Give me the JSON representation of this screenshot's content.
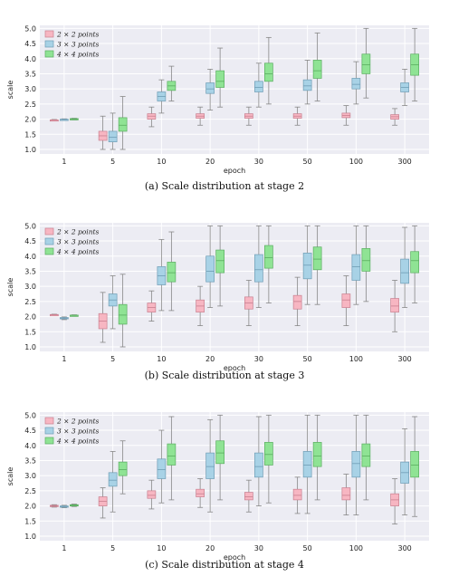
{
  "chart_data": [
    {
      "type": "box",
      "caption": "(a) Scale distribution at stage 2",
      "xlabel": "epoch",
      "ylabel": "scale",
      "ylim": [
        0.85,
        5.1
      ],
      "yticks": [
        "1.0",
        "1.5",
        "2.0",
        "2.5",
        "3.0",
        "3.5",
        "4.0",
        "4.5",
        "5.0"
      ],
      "grid": true,
      "legend_position": "top-left",
      "categories": [
        "1",
        "5",
        "10",
        "20",
        "30",
        "50",
        "100",
        "300"
      ],
      "series": [
        {
          "name": "2 × 2 points",
          "color": "#f7b6c2",
          "edge": "#c98090",
          "boxes": [
            {
              "whislo": 1.95,
              "q1": 1.96,
              "med": 1.97,
              "q3": 1.98,
              "whishi": 1.99
            },
            {
              "whislo": 1.0,
              "q1": 1.3,
              "med": 1.45,
              "q3": 1.6,
              "whishi": 2.1
            },
            {
              "whislo": 1.75,
              "q1": 2.0,
              "med": 2.1,
              "q3": 2.18,
              "whishi": 2.4
            },
            {
              "whislo": 1.8,
              "q1": 2.03,
              "med": 2.1,
              "q3": 2.18,
              "whishi": 2.4
            },
            {
              "whislo": 1.8,
              "q1": 2.03,
              "med": 2.1,
              "q3": 2.18,
              "whishi": 2.4
            },
            {
              "whislo": 1.8,
              "q1": 2.03,
              "med": 2.1,
              "q3": 2.18,
              "whishi": 2.4
            },
            {
              "whislo": 1.8,
              "q1": 2.05,
              "med": 2.12,
              "q3": 2.2,
              "whishi": 2.45
            },
            {
              "whislo": 1.8,
              "q1": 2.0,
              "med": 2.08,
              "q3": 2.15,
              "whishi": 2.35
            }
          ]
        },
        {
          "name": "3 × 3 points",
          "color": "#a8d2e6",
          "edge": "#6f9db5",
          "boxes": [
            {
              "whislo": 1.97,
              "q1": 1.98,
              "med": 1.99,
              "q3": 2.0,
              "whishi": 2.01
            },
            {
              "whislo": 1.0,
              "q1": 1.25,
              "med": 1.4,
              "q3": 1.6,
              "whishi": 2.2
            },
            {
              "whislo": 2.2,
              "q1": 2.6,
              "med": 2.75,
              "q3": 2.9,
              "whishi": 3.3
            },
            {
              "whislo": 2.3,
              "q1": 2.85,
              "med": 3.0,
              "q3": 3.2,
              "whishi": 3.65
            },
            {
              "whislo": 2.4,
              "q1": 2.9,
              "med": 3.05,
              "q3": 3.25,
              "whishi": 3.85
            },
            {
              "whislo": 2.5,
              "q1": 2.95,
              "med": 3.1,
              "q3": 3.3,
              "whishi": 3.95
            },
            {
              "whislo": 2.5,
              "q1": 3.0,
              "med": 3.15,
              "q3": 3.35,
              "whishi": 3.9
            },
            {
              "whislo": 2.45,
              "q1": 2.9,
              "med": 3.05,
              "q3": 3.2,
              "whishi": 3.65
            }
          ]
        },
        {
          "name": "4 × 4 points",
          "color": "#8fe394",
          "edge": "#5aae60",
          "boxes": [
            {
              "whislo": 1.98,
              "q1": 1.99,
              "med": 2.0,
              "q3": 2.02,
              "whishi": 2.03
            },
            {
              "whislo": 1.0,
              "q1": 1.6,
              "med": 1.8,
              "q3": 2.05,
              "whishi": 2.75
            },
            {
              "whislo": 2.6,
              "q1": 2.95,
              "med": 3.1,
              "q3": 3.25,
              "whishi": 3.75
            },
            {
              "whislo": 2.4,
              "q1": 3.05,
              "med": 3.25,
              "q3": 3.6,
              "whishi": 4.35
            },
            {
              "whislo": 2.5,
              "q1": 3.25,
              "med": 3.5,
              "q3": 3.85,
              "whishi": 4.7
            },
            {
              "whislo": 2.6,
              "q1": 3.35,
              "med": 3.6,
              "q3": 3.95,
              "whishi": 4.85
            },
            {
              "whislo": 2.7,
              "q1": 3.5,
              "med": 3.8,
              "q3": 4.15,
              "whishi": 5.0
            },
            {
              "whislo": 2.6,
              "q1": 3.45,
              "med": 3.8,
              "q3": 4.15,
              "whishi": 5.0
            }
          ]
        }
      ]
    },
    {
      "type": "box",
      "caption": "(b) Scale distribution at stage 3",
      "xlabel": "epoch",
      "ylabel": "scale",
      "ylim": [
        0.85,
        5.1
      ],
      "yticks": [
        "1.0",
        "1.5",
        "2.0",
        "2.5",
        "3.0",
        "3.5",
        "4.0",
        "4.5",
        "5.0"
      ],
      "grid": true,
      "legend_position": "top-left",
      "categories": [
        "1",
        "5",
        "10",
        "20",
        "30",
        "50",
        "100",
        "300"
      ],
      "series": [
        {
          "name": "2 × 2 points",
          "color": "#f7b6c2",
          "edge": "#c98090",
          "boxes": [
            {
              "whislo": 2.04,
              "q1": 2.05,
              "med": 2.06,
              "q3": 2.07,
              "whishi": 2.08
            },
            {
              "whislo": 1.15,
              "q1": 1.6,
              "med": 1.85,
              "q3": 2.1,
              "whishi": 2.8
            },
            {
              "whislo": 1.85,
              "q1": 2.15,
              "med": 2.3,
              "q3": 2.45,
              "whishi": 2.85
            },
            {
              "whislo": 1.7,
              "q1": 2.15,
              "med": 2.35,
              "q3": 2.55,
              "whishi": 3.0
            },
            {
              "whislo": 1.7,
              "q1": 2.25,
              "med": 2.45,
              "q3": 2.65,
              "whishi": 3.2
            },
            {
              "whislo": 1.7,
              "q1": 2.25,
              "med": 2.5,
              "q3": 2.7,
              "whishi": 3.3
            },
            {
              "whislo": 1.7,
              "q1": 2.3,
              "med": 2.55,
              "q3": 2.75,
              "whishi": 3.35
            },
            {
              "whislo": 1.5,
              "q1": 2.15,
              "med": 2.35,
              "q3": 2.6,
              "whishi": 3.2
            }
          ]
        },
        {
          "name": "3 × 3 points",
          "color": "#a8d2e6",
          "edge": "#6f9db5",
          "boxes": [
            {
              "whislo": 1.9,
              "q1": 1.93,
              "med": 1.95,
              "q3": 1.97,
              "whishi": 1.99
            },
            {
              "whislo": 1.6,
              "q1": 2.35,
              "med": 2.55,
              "q3": 2.75,
              "whishi": 3.35
            },
            {
              "whislo": 2.2,
              "q1": 3.05,
              "med": 3.35,
              "q3": 3.65,
              "whishi": 4.55
            },
            {
              "whislo": 2.3,
              "q1": 3.15,
              "med": 3.5,
              "q3": 4.0,
              "whishi": 5.0
            },
            {
              "whislo": 2.3,
              "q1": 3.15,
              "med": 3.55,
              "q3": 4.05,
              "whishi": 5.0
            },
            {
              "whislo": 2.4,
              "q1": 3.25,
              "med": 3.7,
              "q3": 4.1,
              "whishi": 5.0
            },
            {
              "whislo": 2.4,
              "q1": 3.2,
              "med": 3.65,
              "q3": 4.05,
              "whishi": 5.0
            },
            {
              "whislo": 2.3,
              "q1": 3.1,
              "med": 3.45,
              "q3": 3.9,
              "whishi": 4.95
            }
          ]
        },
        {
          "name": "4 × 4 points",
          "color": "#8fe394",
          "edge": "#5aae60",
          "boxes": [
            {
              "whislo": 2.02,
              "q1": 2.03,
              "med": 2.04,
              "q3": 2.05,
              "whishi": 2.06
            },
            {
              "whislo": 1.0,
              "q1": 1.75,
              "med": 2.05,
              "q3": 2.4,
              "whishi": 3.4
            },
            {
              "whislo": 2.2,
              "q1": 3.15,
              "med": 3.45,
              "q3": 3.8,
              "whishi": 4.8
            },
            {
              "whislo": 2.35,
              "q1": 3.45,
              "med": 3.85,
              "q3": 4.2,
              "whishi": 5.0
            },
            {
              "whislo": 2.45,
              "q1": 3.6,
              "med": 3.95,
              "q3": 4.35,
              "whishi": 5.0
            },
            {
              "whislo": 2.4,
              "q1": 3.55,
              "med": 3.9,
              "q3": 4.3,
              "whishi": 5.0
            },
            {
              "whislo": 2.5,
              "q1": 3.5,
              "med": 3.85,
              "q3": 4.25,
              "whishi": 5.0
            },
            {
              "whislo": 2.45,
              "q1": 3.45,
              "med": 3.85,
              "q3": 4.15,
              "whishi": 5.0
            }
          ]
        }
      ]
    },
    {
      "type": "box",
      "caption": "(c) Scale distribution at stage 4",
      "xlabel": "epoch",
      "ylabel": "scale",
      "ylim": [
        0.85,
        5.1
      ],
      "yticks": [
        "1.0",
        "1.5",
        "2.0",
        "2.5",
        "3.0",
        "3.5",
        "4.0",
        "4.5",
        "5.0"
      ],
      "grid": true,
      "legend_position": "top-left",
      "categories": [
        "1",
        "5",
        "10",
        "20",
        "30",
        "50",
        "100",
        "300"
      ],
      "series": [
        {
          "name": "2 × 2 points",
          "color": "#f7b6c2",
          "edge": "#c98090",
          "boxes": [
            {
              "whislo": 1.96,
              "q1": 1.98,
              "med": 2.0,
              "q3": 2.02,
              "whishi": 2.04
            },
            {
              "whislo": 1.6,
              "q1": 2.0,
              "med": 2.15,
              "q3": 2.3,
              "whishi": 2.6
            },
            {
              "whislo": 1.9,
              "q1": 2.25,
              "med": 2.35,
              "q3": 2.5,
              "whishi": 2.85
            },
            {
              "whislo": 1.95,
              "q1": 2.3,
              "med": 2.4,
              "q3": 2.55,
              "whishi": 2.9
            },
            {
              "whislo": 1.8,
              "q1": 2.2,
              "med": 2.3,
              "q3": 2.45,
              "whishi": 2.85
            },
            {
              "whislo": 1.75,
              "q1": 2.2,
              "med": 2.35,
              "q3": 2.55,
              "whishi": 2.95
            },
            {
              "whislo": 1.7,
              "q1": 2.2,
              "med": 2.35,
              "q3": 2.6,
              "whishi": 3.05
            },
            {
              "whislo": 1.4,
              "q1": 2.0,
              "med": 2.2,
              "q3": 2.4,
              "whishi": 2.9
            }
          ]
        },
        {
          "name": "3 × 3 points",
          "color": "#a8d2e6",
          "edge": "#6f9db5",
          "boxes": [
            {
              "whislo": 1.94,
              "q1": 1.96,
              "med": 1.98,
              "q3": 2.0,
              "whishi": 2.02
            },
            {
              "whislo": 1.8,
              "q1": 2.65,
              "med": 2.85,
              "q3": 3.1,
              "whishi": 3.8
            },
            {
              "whislo": 2.1,
              "q1": 2.9,
              "med": 3.2,
              "q3": 3.55,
              "whishi": 4.5
            },
            {
              "whislo": 1.8,
              "q1": 2.9,
              "med": 3.3,
              "q3": 3.75,
              "whishi": 4.85
            },
            {
              "whislo": 2.0,
              "q1": 2.95,
              "med": 3.3,
              "q3": 3.75,
              "whishi": 4.95
            },
            {
              "whislo": 1.75,
              "q1": 2.95,
              "med": 3.35,
              "q3": 3.8,
              "whishi": 5.0
            },
            {
              "whislo": 1.7,
              "q1": 2.95,
              "med": 3.4,
              "q3": 3.8,
              "whishi": 5.0
            },
            {
              "whislo": 1.7,
              "q1": 2.75,
              "med": 3.1,
              "q3": 3.45,
              "whishi": 4.55
            }
          ]
        },
        {
          "name": "4 × 4 points",
          "color": "#8fe394",
          "edge": "#5aae60",
          "boxes": [
            {
              "whislo": 1.98,
              "q1": 2.0,
              "med": 2.02,
              "q3": 2.04,
              "whishi": 2.06
            },
            {
              "whislo": 2.4,
              "q1": 3.0,
              "med": 3.2,
              "q3": 3.45,
              "whishi": 4.15
            },
            {
              "whislo": 2.2,
              "q1": 3.35,
              "med": 3.65,
              "q3": 4.05,
              "whishi": 4.95
            },
            {
              "whislo": 2.2,
              "q1": 3.4,
              "med": 3.75,
              "q3": 4.15,
              "whishi": 5.0
            },
            {
              "whislo": 2.1,
              "q1": 3.35,
              "med": 3.7,
              "q3": 4.1,
              "whishi": 5.0
            },
            {
              "whislo": 2.2,
              "q1": 3.3,
              "med": 3.65,
              "q3": 4.1,
              "whishi": 5.0
            },
            {
              "whislo": 2.2,
              "q1": 3.3,
              "med": 3.65,
              "q3": 4.05,
              "whishi": 5.0
            },
            {
              "whislo": 1.65,
              "q1": 2.95,
              "med": 3.35,
              "q3": 3.8,
              "whishi": 4.95
            }
          ]
        }
      ]
    }
  ]
}
